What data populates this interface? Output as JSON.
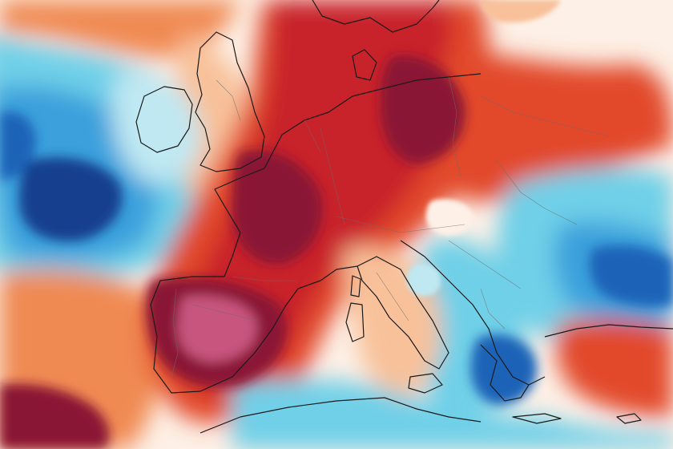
{
  "map": {
    "kind": "temperature-anomaly-map",
    "region": "Europe",
    "labels": [],
    "colors": {
      "extreme_warm": "#8a1535",
      "very_warm": "#c8202a",
      "warm": "#e24a2c",
      "mild_warm": "#f08a52",
      "slight_warm": "#f8c19a",
      "neutral": "#fdf0e6",
      "slight_cool": "#bfe8f2",
      "cool": "#6fd0e8",
      "cold": "#3aa0dc",
      "very_cold": "#1f63b8",
      "extreme_cold": "#16408e",
      "hot_core": "#c8547e",
      "coastline": "#1a1a1a",
      "admin_borders": "#6b6b6b"
    }
  }
}
